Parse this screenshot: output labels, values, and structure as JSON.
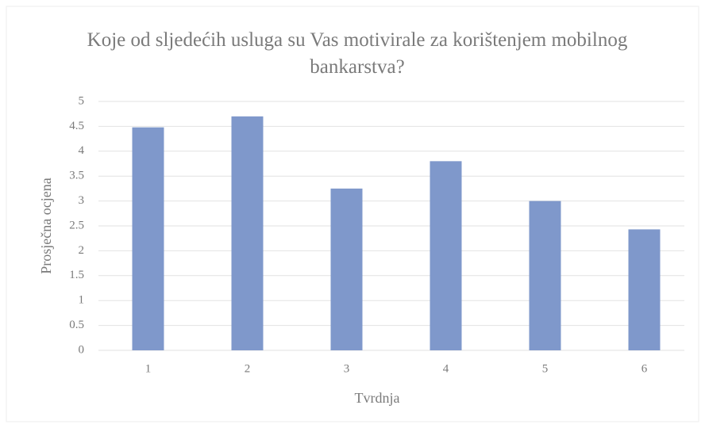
{
  "chart_data": {
    "type": "bar",
    "title": "Koje od sljedećih usluga su Vas motivirale za korištenjem mobilnog bankarstva?",
    "x_label": "Tvrdnja",
    "y_label": "Prosječna ocjena",
    "categories": [
      "1",
      "2",
      "3",
      "4",
      "5",
      "6"
    ],
    "values": [
      4.48,
      4.7,
      3.25,
      3.8,
      3.0,
      2.43
    ],
    "color": "#7f98cb",
    "ylim": [
      0,
      5
    ],
    "yticks": [
      0,
      0.5,
      1,
      1.5,
      2,
      2.5,
      3,
      3.5,
      4,
      4.5,
      5
    ],
    "grid": true
  }
}
